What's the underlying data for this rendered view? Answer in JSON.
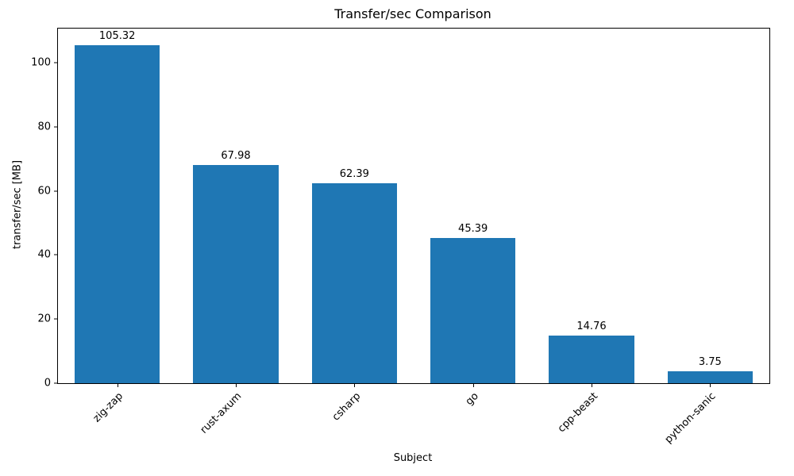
{
  "chart_data": {
    "type": "bar",
    "title": "Transfer/sec Comparison",
    "xlabel": "Subject",
    "ylabel": "transfer/sec [MB]",
    "categories": [
      "zig-zap",
      "rust-axum",
      "csharp",
      "go",
      "cpp-beast",
      "python-sanic"
    ],
    "values": [
      105.32,
      67.98,
      62.39,
      45.39,
      14.76,
      3.75
    ],
    "value_labels": [
      "105.32",
      "67.98",
      "62.39",
      "45.39",
      "14.76",
      "3.75"
    ],
    "bar_color": "#1f77b4",
    "ylim": [
      0,
      110.6
    ],
    "yticks": [
      0,
      20,
      40,
      60,
      80,
      100
    ],
    "grid": false,
    "legend": "none"
  }
}
